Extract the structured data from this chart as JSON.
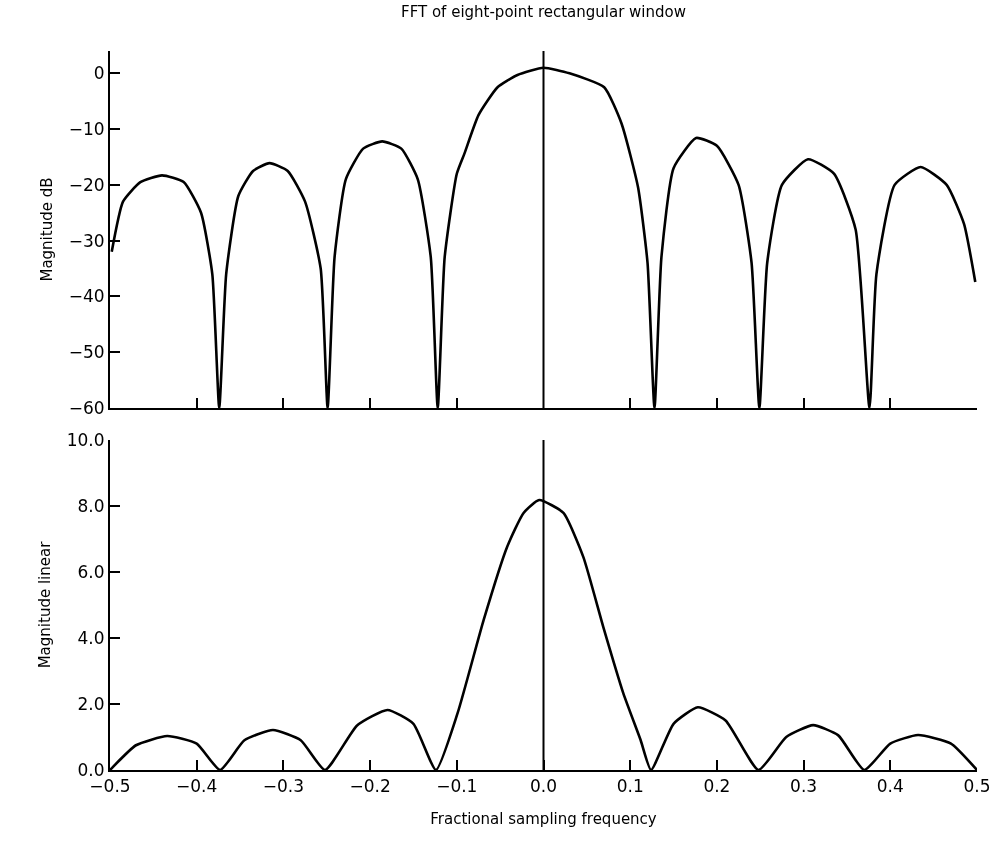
{
  "chart_data": [
    {
      "type": "line",
      "title": "FFT of eight-point rectangular window",
      "ylabel": "Magnitude dB",
      "x": [
        -0.498,
        -0.485,
        -0.465,
        -0.44,
        -0.415,
        -0.395,
        -0.382,
        -0.374,
        -0.366,
        -0.352,
        -0.335,
        -0.316,
        -0.295,
        -0.275,
        -0.257,
        -0.249,
        -0.241,
        -0.228,
        -0.208,
        -0.186,
        -0.164,
        -0.145,
        -0.13,
        -0.122,
        -0.114,
        -0.1,
        -0.091,
        -0.075,
        -0.053,
        -0.03,
        0,
        0.03,
        0.07,
        0.09,
        0.109,
        0.12,
        0.128,
        0.136,
        0.15,
        0.176,
        0.2,
        0.225,
        0.24,
        0.249,
        0.258,
        0.275,
        0.305,
        0.335,
        0.36,
        0.376,
        0.384,
        0.405,
        0.435,
        0.465,
        0.485,
        0.498
      ],
      "series": [
        {
          "color": "#000000",
          "values": [
            -32,
            -23,
            -19.5,
            -18.3,
            -19.5,
            -25,
            -36,
            -60,
            -36,
            -22,
            -17.5,
            -16.1,
            -17.5,
            -23,
            -35,
            -60,
            -33,
            -19,
            -13.5,
            -12.2,
            -13.5,
            -19,
            -33,
            -60,
            -33,
            -18,
            -14.3,
            -7.5,
            -2.5,
            -0.3,
            1,
            0,
            -2.5,
            -9,
            -20.4,
            -34,
            -60,
            -33,
            -17,
            -11.6,
            -13,
            -20,
            -34,
            -60,
            -34,
            -20,
            -15.4,
            -18,
            -28,
            -60,
            -36,
            -20,
            -16.8,
            -20,
            -27,
            -37.4
          ]
        }
      ],
      "xlim": [
        -0.5,
        0.5
      ],
      "xticks": [
        {
          "value": -0.4,
          "label": null
        },
        {
          "value": -0.3,
          "label": null
        },
        {
          "value": -0.2,
          "label": null
        },
        {
          "value": -0.1,
          "label": null
        },
        {
          "value": 0.1,
          "label": null
        },
        {
          "value": 0.2,
          "label": null
        },
        {
          "value": 0.3,
          "label": null
        },
        {
          "value": 0.4,
          "label": null
        },
        {
          "value": 0.5,
          "label": null
        }
      ],
      "ylim": [
        -60,
        4
      ],
      "yticks": [
        -60,
        -50,
        -40,
        -30,
        -20,
        -10,
        0
      ],
      "tick_labels": "y",
      "marker": "none",
      "line_style": "solid",
      "ref_lines": [
        {
          "axis": "x",
          "value": 0,
          "label": null,
          "color": "#000000"
        }
      ]
    },
    {
      "type": "line",
      "xlabel": "Fractional sampling frequency",
      "ylabel": "Magnitude linear",
      "x": [
        -0.5,
        -0.47,
        -0.434,
        -0.4,
        -0.373,
        -0.345,
        -0.312,
        -0.28,
        -0.252,
        -0.215,
        -0.18,
        -0.15,
        -0.124,
        -0.099,
        -0.069,
        -0.042,
        -0.023,
        -0.005,
        0.023,
        0.046,
        0.069,
        0.092,
        0.112,
        0.124,
        0.15,
        0.178,
        0.21,
        0.248,
        0.28,
        0.311,
        0.34,
        0.37,
        0.4,
        0.432,
        0.47,
        0.5
      ],
      "series": [
        {
          "color": "#000000",
          "values": [
            0,
            0.75,
            1.03,
            0.8,
            0,
            0.9,
            1.21,
            0.9,
            0,
            1.35,
            1.82,
            1.4,
            0,
            1.73,
            4.55,
            6.76,
            7.79,
            8.18,
            7.79,
            6.45,
            4.33,
            2.33,
            0.91,
            0,
            1.4,
            1.9,
            1.5,
            0,
            1.0,
            1.36,
            1.05,
            0,
            0.8,
            1.06,
            0.8,
            0
          ]
        }
      ],
      "xlim": [
        -0.5,
        0.5
      ],
      "xticks": [
        -0.5,
        -0.4,
        -0.3,
        -0.2,
        -0.1,
        {
          "value": 0,
          "label": "0.0"
        },
        0.1,
        0.2,
        0.3,
        0.4,
        0.5
      ],
      "ylim": [
        0,
        10
      ],
      "yticks": [
        {
          "value": 0,
          "label": "0.0"
        },
        {
          "value": 2,
          "label": "2.0"
        },
        {
          "value": 4,
          "label": "4.0"
        },
        {
          "value": 6,
          "label": "6.0"
        },
        {
          "value": 8,
          "label": "8.0"
        },
        {
          "value": 10,
          "label": "10.0"
        }
      ],
      "marker": "none",
      "line_style": "solid",
      "ref_lines": [
        {
          "axis": "x",
          "value": 0,
          "label": null,
          "color": "#000000"
        }
      ]
    }
  ]
}
